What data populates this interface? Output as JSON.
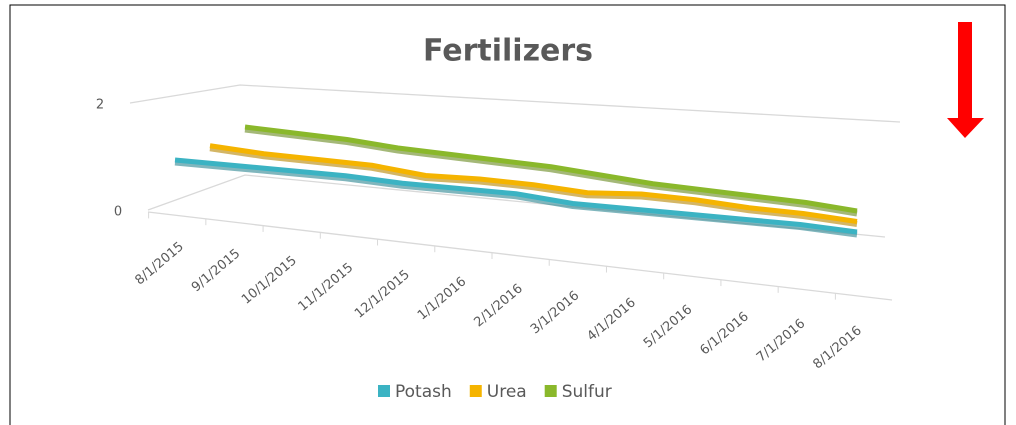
{
  "chart_data": {
    "type": "line",
    "title": "Fertilizers",
    "categories": [
      "8/1/2015",
      "9/1/2015",
      "10/1/2015",
      "11/1/2015",
      "12/1/2015",
      "1/1/2016",
      "2/1/2016",
      "3/1/2016",
      "4/1/2016",
      "5/1/2016",
      "6/1/2016",
      "7/1/2016",
      "8/1/2016"
    ],
    "series": [
      {
        "name": "Potash",
        "color": "#3bb3c3",
        "values": [
          1.0,
          0.95,
          0.9,
          0.85,
          0.75,
          0.7,
          0.65,
          0.5,
          0.45,
          0.4,
          0.35,
          0.3,
          0.2
        ]
      },
      {
        "name": "Urea",
        "color": "#f5b400",
        "values": [
          1.05,
          0.95,
          0.9,
          0.85,
          0.7,
          0.7,
          0.65,
          0.55,
          0.6,
          0.55,
          0.45,
          0.4,
          0.3
        ]
      },
      {
        "name": "Sulfur",
        "color": "#8ab82b",
        "values": [
          1.2,
          1.15,
          1.1,
          1.0,
          0.95,
          0.9,
          0.85,
          0.75,
          0.65,
          0.6,
          0.55,
          0.5,
          0.4
        ]
      }
    ],
    "ylim": [
      0,
      2
    ],
    "yticks": [
      0,
      2
    ],
    "grid": true,
    "legend": "bottom"
  }
}
